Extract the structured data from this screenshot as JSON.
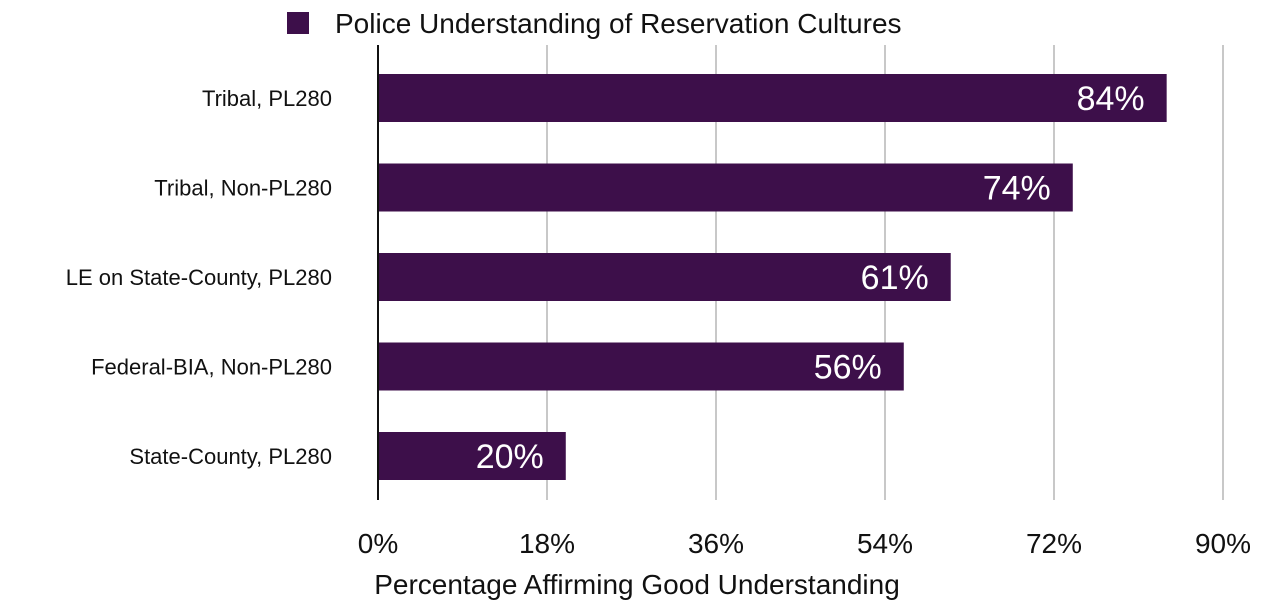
{
  "chart_data": {
    "type": "bar",
    "orientation": "horizontal",
    "categories": [
      "Tribal, PL280",
      "Tribal, Non-PL280",
      "LE on State-County, PL280",
      "Federal-BIA, Non-PL280",
      "State-County, PL280"
    ],
    "series": [
      {
        "name": "Police Understanding of Reservation Cultures",
        "values": [
          84,
          74,
          61,
          56,
          20
        ],
        "data_labels": [
          "84%",
          "74%",
          "61%",
          "56%",
          "20%"
        ]
      }
    ],
    "xlabel": "Percentage Affirming Good Understanding",
    "ylabel": "",
    "xlim": [
      0,
      90
    ],
    "xticks": [
      0,
      18,
      36,
      54,
      72,
      90
    ],
    "xtick_labels": [
      "0%",
      "18%",
      "36%",
      "54%",
      "72%",
      "90%"
    ],
    "grid": "vertical",
    "legend_position": "top",
    "colors": {
      "bar": "#3d0f4a",
      "grid": "#c8c8c8",
      "axis": "#111111",
      "data_label": "#ffffff"
    }
  }
}
